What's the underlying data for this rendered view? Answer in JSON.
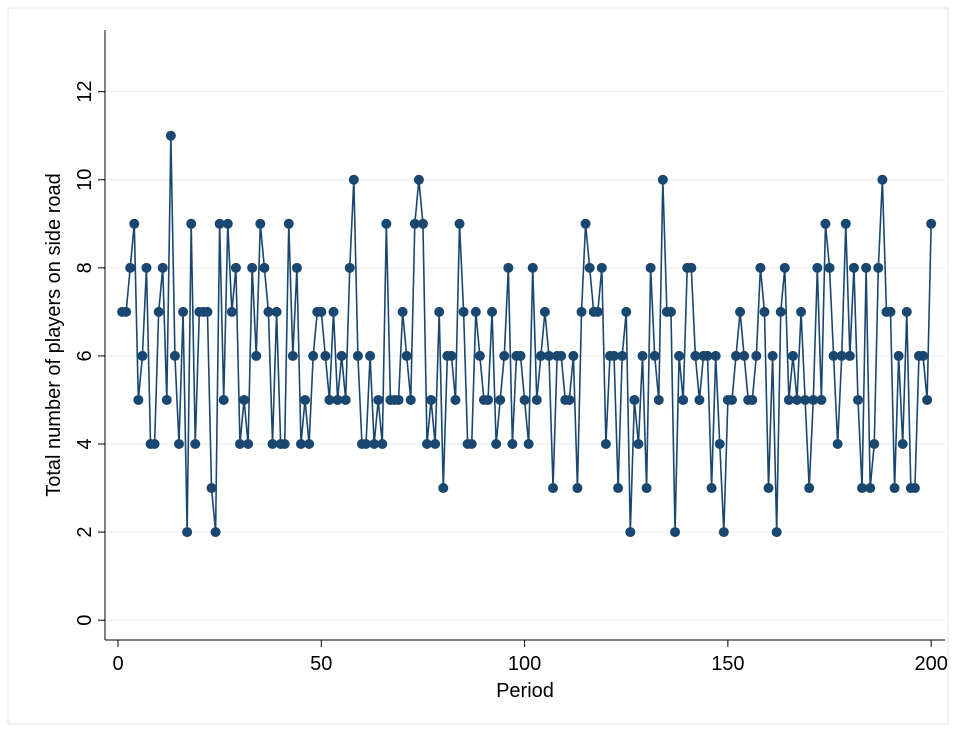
{
  "chart_data": {
    "type": "line",
    "x_label": "Period",
    "y_label": "Total number of players on side road",
    "x": [
      1,
      2,
      3,
      4,
      5,
      6,
      7,
      8,
      9,
      10,
      11,
      12,
      13,
      14,
      15,
      16,
      17,
      18,
      19,
      20,
      21,
      22,
      23,
      24,
      25,
      26,
      27,
      28,
      29,
      30,
      31,
      32,
      33,
      34,
      35,
      36,
      37,
      38,
      39,
      40,
      41,
      42,
      43,
      44,
      45,
      46,
      47,
      48,
      49,
      50,
      51,
      52,
      53,
      54,
      55,
      56,
      57,
      58,
      59,
      60,
      61,
      62,
      63,
      64,
      65,
      66,
      67,
      68,
      69,
      70,
      71,
      72,
      73,
      74,
      75,
      76,
      77,
      78,
      79,
      80,
      81,
      82,
      83,
      84,
      85,
      86,
      87,
      88,
      89,
      90,
      91,
      92,
      93,
      94,
      95,
      96,
      97,
      98,
      99,
      100,
      101,
      102,
      103,
      104,
      105,
      106,
      107,
      108,
      109,
      110,
      111,
      112,
      113,
      114,
      115,
      116,
      117,
      118,
      119,
      120,
      121,
      122,
      123,
      124,
      125,
      126,
      127,
      128,
      129,
      130,
      131,
      132,
      133,
      134,
      135,
      136,
      137,
      138,
      139,
      140,
      141,
      142,
      143,
      144,
      145,
      146,
      147,
      148,
      149,
      150,
      151,
      152,
      153,
      154,
      155,
      156,
      157,
      158,
      159,
      160,
      161,
      162,
      163,
      164,
      165,
      166,
      167,
      168,
      169,
      170,
      171,
      172,
      173,
      174,
      175,
      176,
      177,
      178,
      179,
      180,
      181,
      182,
      183,
      184,
      185,
      186,
      187,
      188,
      189,
      190,
      191,
      192,
      193,
      194,
      195,
      196,
      197,
      198,
      199,
      200
    ],
    "series": [
      {
        "name": "Total",
        "color": "#1a476f",
        "values": [
          7,
          7,
          8,
          9,
          5,
          6,
          8,
          4,
          4,
          7,
          8,
          5,
          11,
          6,
          4,
          7,
          2,
          9,
          4,
          7,
          7,
          7,
          3,
          2,
          9,
          5,
          9,
          7,
          8,
          4,
          5,
          4,
          8,
          6,
          9,
          8,
          7,
          4,
          7,
          4,
          4,
          9,
          6,
          8,
          4,
          5,
          4,
          6,
          7,
          7,
          6,
          5,
          7,
          5,
          6,
          5,
          8,
          10,
          6,
          4,
          4,
          6,
          4,
          5,
          4,
          9,
          5,
          5,
          5,
          7,
          6,
          5,
          9,
          10,
          9,
          4,
          5,
          4,
          7,
          3,
          6,
          6,
          5,
          9,
          7,
          4,
          4,
          7,
          6,
          5,
          5,
          7,
          4,
          5,
          6,
          8,
          4,
          6,
          6,
          5,
          4,
          8,
          5,
          6,
          7,
          6,
          3,
          6,
          6,
          5,
          5,
          6,
          3,
          7,
          9,
          8,
          7,
          7,
          8,
          4,
          6,
          6,
          3,
          6,
          7,
          2,
          5,
          4,
          6,
          3,
          8,
          6,
          5,
          10,
          7,
          7,
          2,
          6,
          5,
          8,
          8,
          6,
          5,
          6,
          6,
          3,
          6,
          4,
          2,
          5,
          5,
          6,
          7,
          6,
          5,
          5,
          6,
          8,
          7,
          3,
          6,
          2,
          7,
          8,
          5,
          6,
          5,
          7,
          5,
          3,
          5,
          8,
          5,
          9,
          8,
          6,
          4,
          6,
          9,
          6,
          8,
          5,
          3,
          8,
          3,
          4,
          8,
          10,
          7,
          7,
          3,
          6,
          4,
          7,
          3,
          3,
          6,
          6,
          5,
          9
        ]
      }
    ],
    "xlim": [
      -3.2,
      203.4
    ],
    "ylim": [
      -0.45,
      13.4
    ],
    "xticks": [
      0,
      50,
      100,
      150,
      200
    ],
    "yticks": [
      0,
      2,
      4,
      6,
      8,
      10,
      12
    ],
    "grid": true
  }
}
